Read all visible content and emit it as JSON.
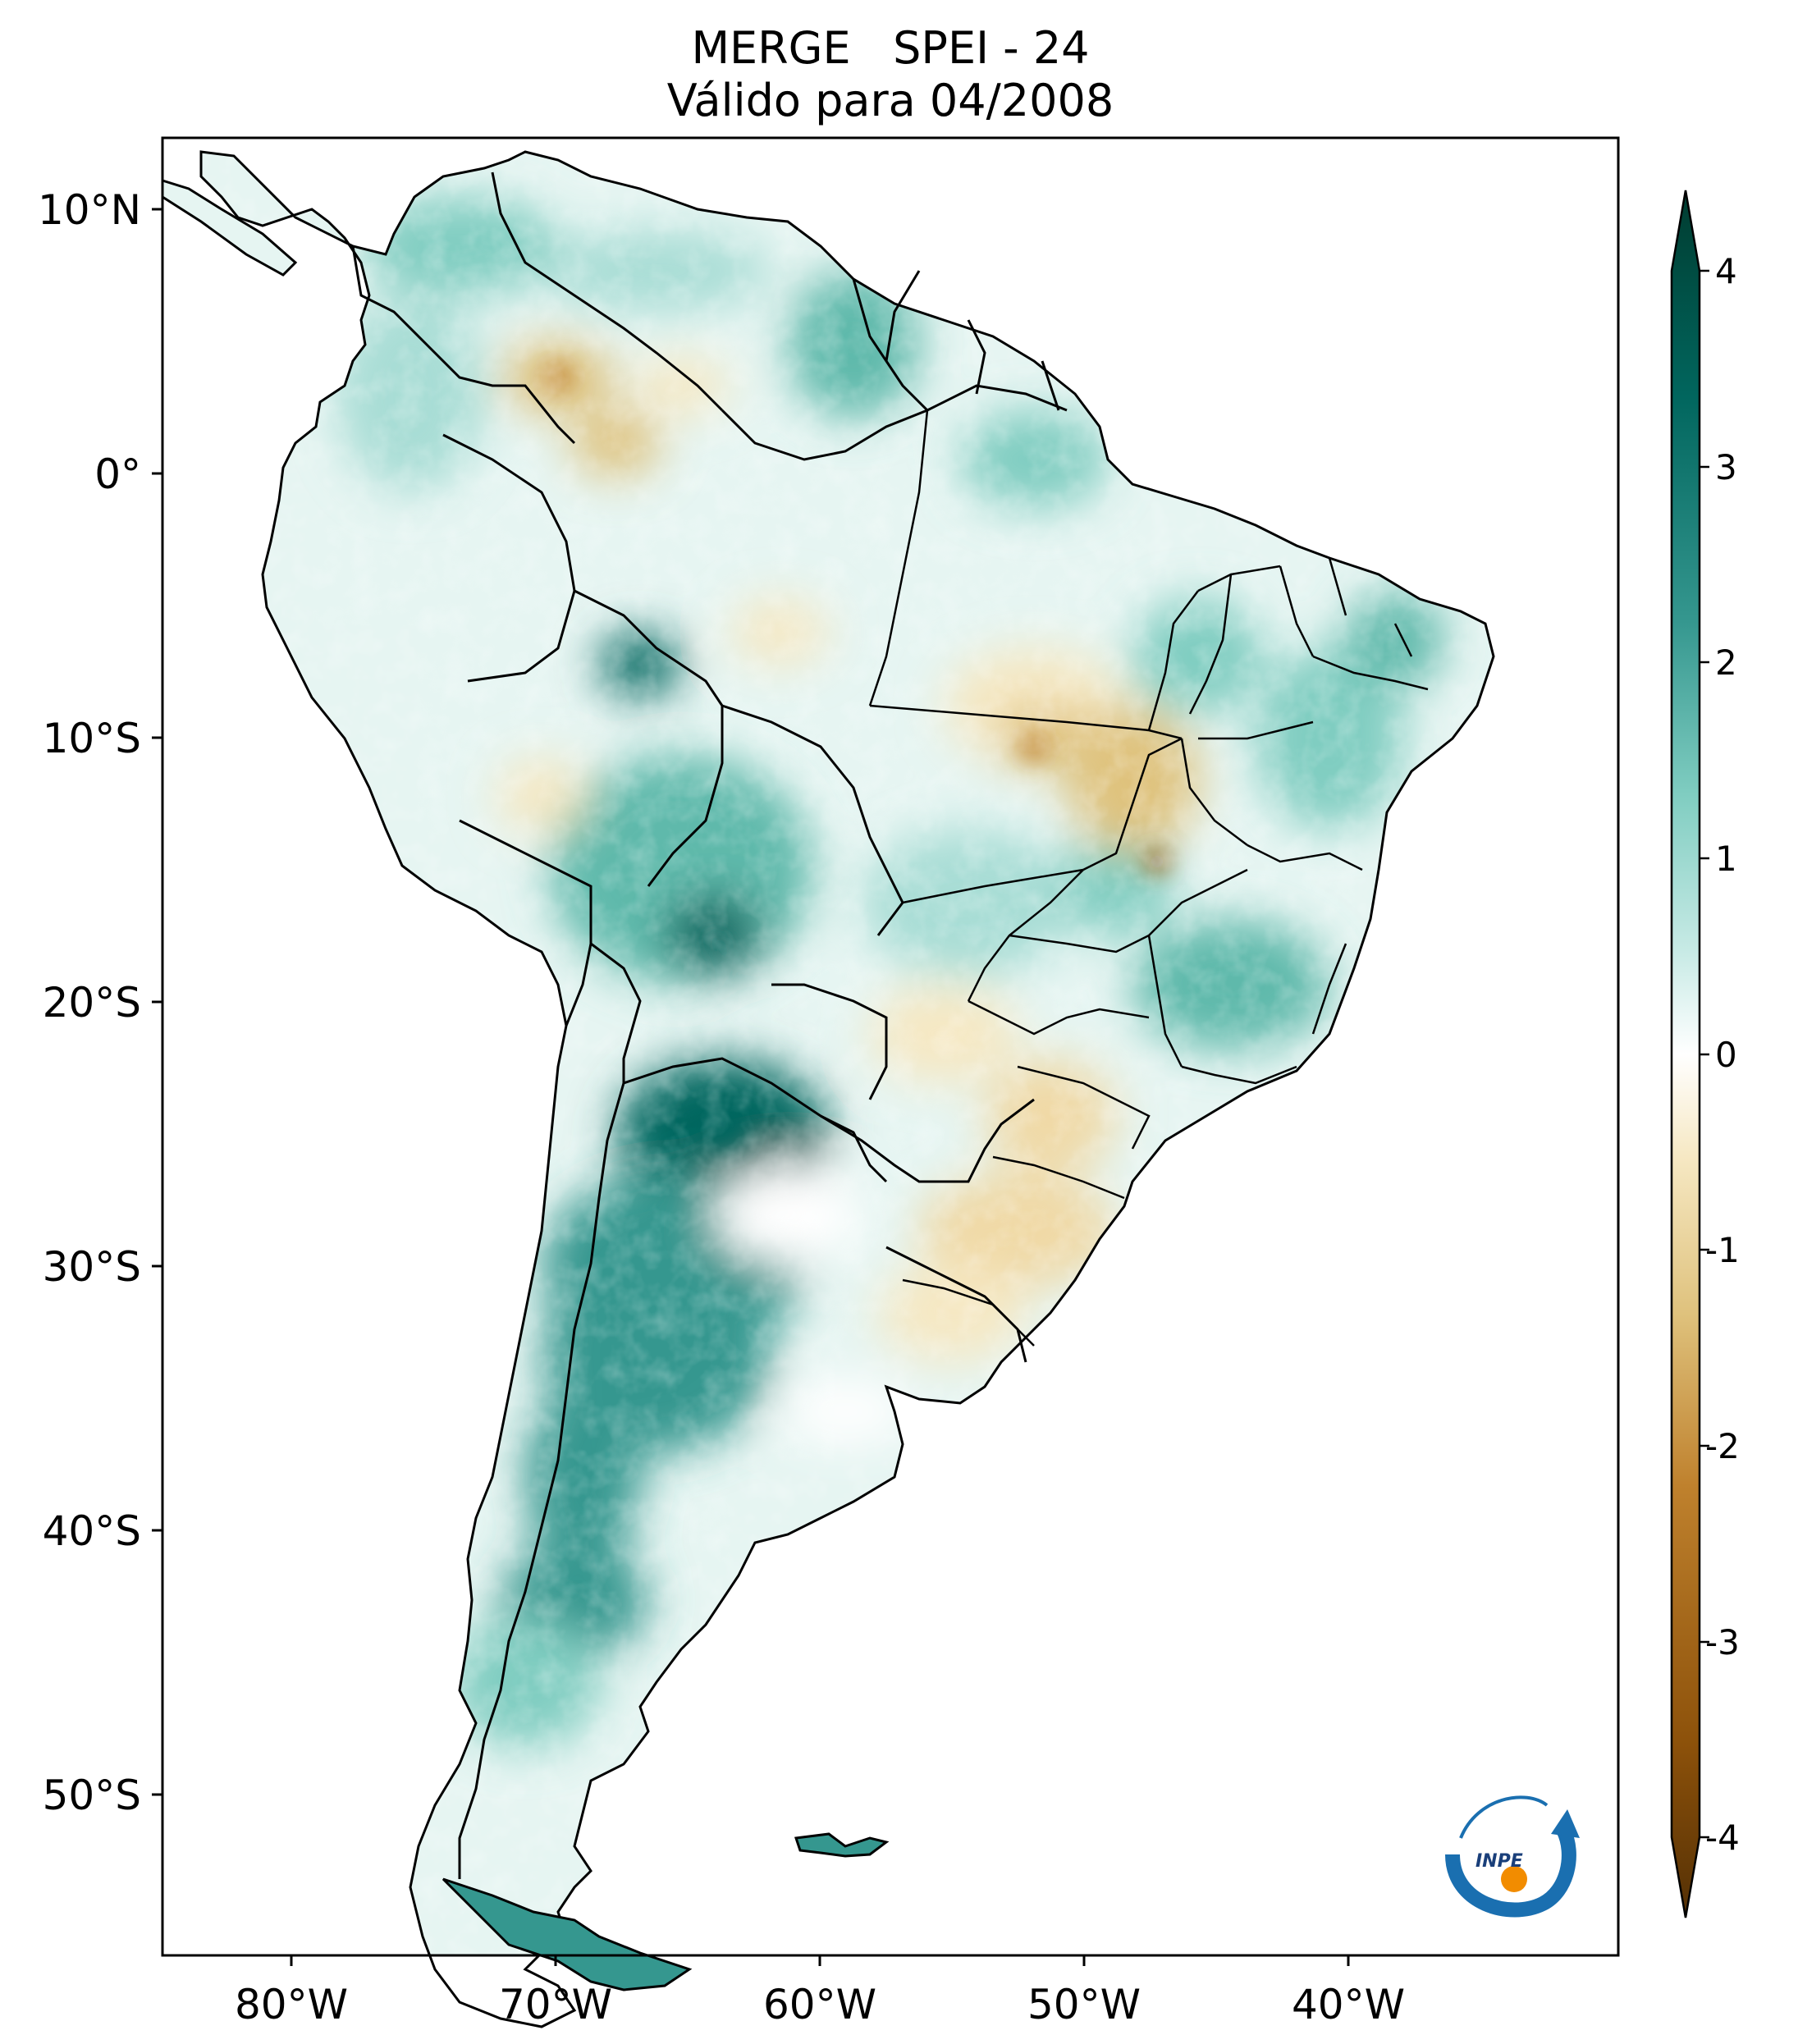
{
  "title": {
    "line1": "MERGE   SPEI - 24",
    "line2": "Válido para 04/2008"
  },
  "map": {
    "lon_ticks": [
      "80°W",
      "70°W",
      "60°W",
      "50°W",
      "40°W"
    ],
    "lat_ticks": [
      "10°N",
      "0°",
      "10°S",
      "20°S",
      "30°S",
      "40°S",
      "50°S"
    ],
    "extent": {
      "lon_min": -85,
      "lon_max": -30,
      "lat_min": -56,
      "lat_max": 13
    }
  },
  "colorbar": {
    "ticks": [
      "4",
      "3",
      "2",
      "1",
      "0",
      "-1",
      "-2",
      "-3",
      "-4"
    ],
    "vmin": -4,
    "vmax": 4,
    "colormap": "BrBG",
    "colors": [
      "#543005",
      "#8c510a",
      "#bf812d",
      "#dfc27d",
      "#f6e8c3",
      "#ffffff",
      "#c7eae5",
      "#80cdc1",
      "#35978f",
      "#01665e",
      "#003c30"
    ]
  },
  "logo": {
    "text": "INPE"
  }
}
